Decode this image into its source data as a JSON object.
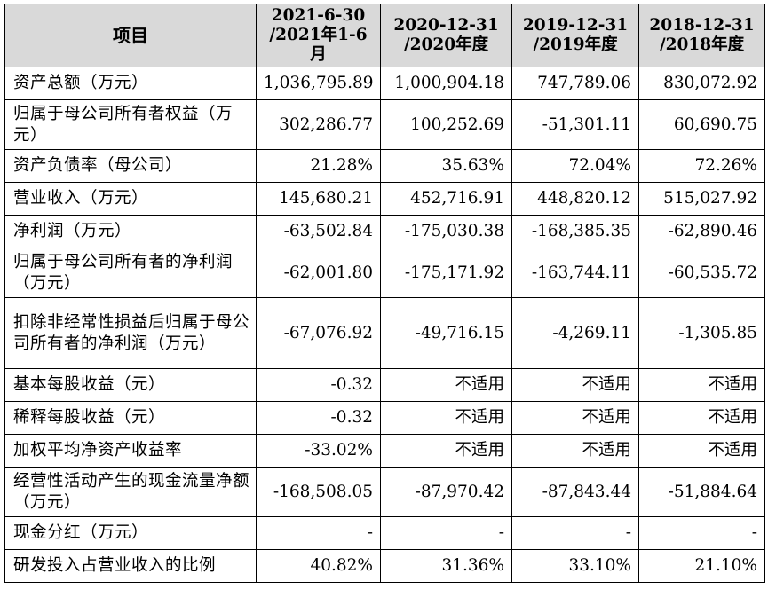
{
  "table": {
    "headers": [
      {
        "line1": "项目",
        "line2": ""
      },
      {
        "line1": "2021-6-30",
        "line2": "/2021年1-6月"
      },
      {
        "line1": "2020-12-31",
        "line2": "/2020年度"
      },
      {
        "line1": "2019-12-31",
        "line2": "/2019年度"
      },
      {
        "line1": "2018-12-31",
        "line2": "/2018年度"
      }
    ],
    "rows": [
      {
        "label": "资产总额（万元）",
        "values": [
          "1,036,795.89",
          "1,000,904.18",
          "747,789.06",
          "830,072.92"
        ]
      },
      {
        "label": "归属于母公司所有者权益（万元）",
        "values": [
          "302,286.77",
          "100,252.69",
          "-51,301.11",
          "60,690.75"
        ]
      },
      {
        "label": "资产负债率（母公司）",
        "values": [
          "21.28%",
          "35.63%",
          "72.04%",
          "72.26%"
        ]
      },
      {
        "label": "营业收入（万元）",
        "values": [
          "145,680.21",
          "452,716.91",
          "448,820.12",
          "515,027.92"
        ]
      },
      {
        "label": "净利润（万元）",
        "values": [
          "-63,502.84",
          "-175,030.38",
          "-168,385.35",
          "-62,890.46"
        ]
      },
      {
        "label": "归属于母公司所有者的净利润（万元）",
        "values": [
          "-62,001.80",
          "-175,171.92",
          "-163,744.11",
          "-60,535.72"
        ]
      },
      {
        "label": "扣除非经常性损益后归属于母公司所有者的净利润（万元）",
        "values": [
          "-67,076.92",
          "-49,716.15",
          "-4,269.11",
          "-1,305.85"
        ]
      },
      {
        "label": "基本每股收益（元）",
        "values": [
          "-0.32",
          "不适用",
          "不适用",
          "不适用"
        ]
      },
      {
        "label": "稀释每股收益（元）",
        "values": [
          "-0.32",
          "不适用",
          "不适用",
          "不适用"
        ]
      },
      {
        "label": "加权平均净资产收益率",
        "values": [
          "-33.02%",
          "不适用",
          "不适用",
          "不适用"
        ]
      },
      {
        "label": "经营性活动产生的现金流量净额（万元）",
        "values": [
          "-168,508.05",
          "-87,970.42",
          "-87,843.44",
          "-51,884.64"
        ]
      },
      {
        "label": "现金分红（万元）",
        "values": [
          "-",
          "-",
          "-",
          "-"
        ]
      },
      {
        "label": "研发投入占营业收入的比例",
        "values": [
          "40.82%",
          "31.36%",
          "33.10%",
          "21.10%"
        ]
      }
    ]
  },
  "colors": {
    "header_background": "#d9d9d9",
    "border": "#000000",
    "text": "#000000"
  }
}
